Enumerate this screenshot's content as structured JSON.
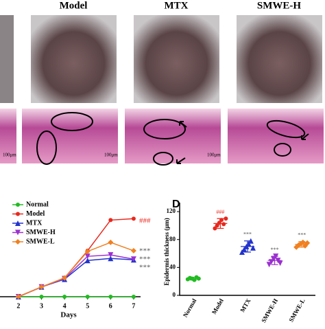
{
  "images": {
    "labels": [
      "Model",
      "MTX",
      "SMWE-H"
    ],
    "scale_bar": "100μm"
  },
  "chart_data": [
    {
      "type": "line",
      "xlabel": "Days",
      "xlim": [
        1.2,
        7.3
      ],
      "xticks": [
        2,
        3,
        4,
        5,
        6,
        7
      ],
      "ylim": [
        0,
        14
      ],
      "x": [
        2,
        3,
        4,
        5,
        6,
        7
      ],
      "series": [
        {
          "name": "Normal",
          "color": "#22bb22",
          "marker": "circle",
          "values": [
            0,
            0,
            0,
            0,
            0,
            0
          ]
        },
        {
          "name": "Model",
          "color": "#e8281e",
          "marker": "circle",
          "values": [
            0,
            1.4,
            2.7,
            6.6,
            11,
            11.2
          ]
        },
        {
          "name": "MTX",
          "color": "#2233cc",
          "marker": "triangle",
          "values": [
            0,
            1.4,
            2.5,
            5.2,
            5.5,
            5.3
          ]
        },
        {
          "name": "SMWE-H",
          "color": "#9b30d0",
          "marker": "triangle-down",
          "values": [
            0,
            1.4,
            2.6,
            5.8,
            6,
            5.4
          ]
        },
        {
          "name": "SMWE-L",
          "color": "#f08020",
          "marker": "diamond",
          "values": [
            0,
            1.4,
            2.7,
            6.5,
            7.8,
            6.6
          ]
        }
      ],
      "annotations": [
        "###",
        "***",
        "***",
        "***"
      ]
    },
    {
      "type": "dot",
      "panel_label": "D",
      "ylabel": "Epidermis thickness (μm)",
      "ylim": [
        0,
        125
      ],
      "yticks": [
        0,
        40,
        80,
        120
      ],
      "categories": [
        "Normal",
        "Model",
        "MTX",
        "SMWE-H",
        "SMWE-L"
      ],
      "colors": [
        "#22bb22",
        "#e8281e",
        "#2233cc",
        "#9b30d0",
        "#f08020"
      ],
      "means": [
        24,
        103,
        70,
        50,
        73
      ],
      "errors": [
        2,
        7,
        8,
        6,
        4
      ],
      "points": [
        [
          23,
          25,
          24,
          22,
          26,
          24
        ],
        [
          96,
          100,
          104,
          108,
          102,
          110
        ],
        [
          62,
          66,
          70,
          74,
          78,
          68
        ],
        [
          44,
          48,
          52,
          56,
          50,
          46
        ],
        [
          69,
          72,
          74,
          76,
          71,
          75
        ]
      ],
      "annotations": [
        "###",
        "***",
        "***",
        "***"
      ]
    }
  ]
}
